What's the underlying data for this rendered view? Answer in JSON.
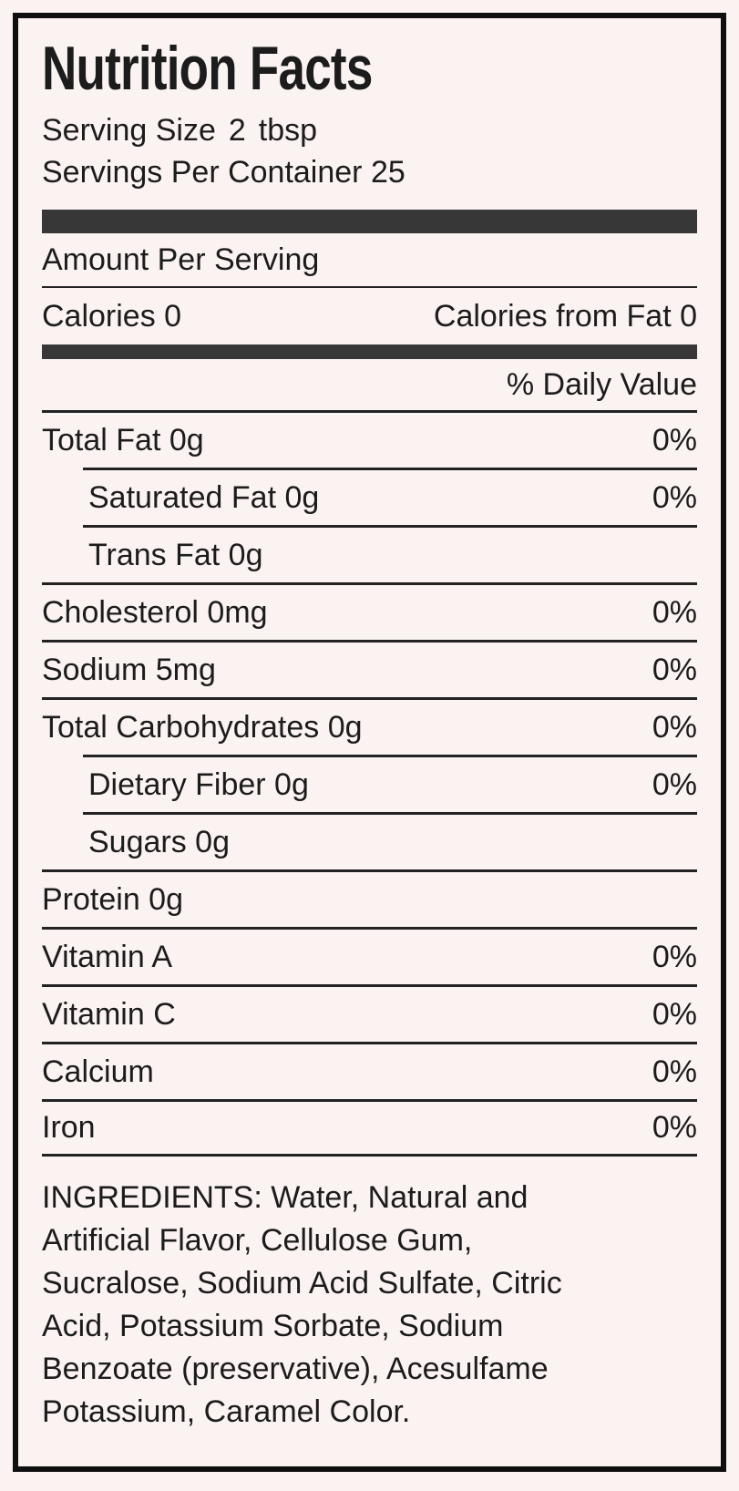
{
  "label": {
    "title": "Nutrition Facts",
    "serving_size": {
      "label": "Serving Size",
      "amount": "2",
      "unit": "tbsp"
    },
    "servings_per_container": "Servings Per Container 25",
    "amount_per_serving": "Amount Per Serving",
    "calories": {
      "left": "Calories 0",
      "right": "Calories from Fat 0"
    },
    "daily_value_header": "% Daily Value",
    "nutrients": [
      {
        "name": "Total Fat 0g",
        "daily_value": "0%"
      },
      {
        "name": "Saturated Fat 0g",
        "daily_value": "0%"
      },
      {
        "name": "Trans Fat 0g",
        "daily_value": ""
      },
      {
        "name": "Cholesterol 0mg",
        "daily_value": "0%"
      },
      {
        "name": "Sodium 5mg",
        "daily_value": "0%"
      },
      {
        "name": "Total Carbohydrates 0g",
        "daily_value": "0%"
      },
      {
        "name": "Dietary Fiber 0g",
        "daily_value": "0%"
      },
      {
        "name": "Sugars 0g",
        "daily_value": ""
      },
      {
        "name": "Protein 0g",
        "daily_value": ""
      },
      {
        "name": "Vitamin A",
        "daily_value": "0%"
      },
      {
        "name": "Vitamin C",
        "daily_value": "0%"
      },
      {
        "name": "Calcium",
        "daily_value": "0%"
      },
      {
        "name": "Iron",
        "daily_value": "0%"
      }
    ],
    "ingredients_lines": [
      "INGREDIENTS: Water, Natural and",
      "Artificial Flavor, Cellulose Gum,",
      "Sucralose, Sodium Acid Sulfate, Citric",
      "Acid, Potassium Sorbate, Sodium",
      "Benzoate (preservative), Acesulfame",
      "Potassium, Caramel Color."
    ],
    "ingredients_full_text": "INGREDIENTS: Water, Natural and Artificial Flavor, Cellulose Gum, Sucralose, Sodium Acid Sulfate, Citric Acid, Potassium Sorbate, Sodium Benzoate (preservative), Acesulfame Potassium, Caramel Color."
  },
  "colors": {
    "background": "#fbf3f2",
    "ink": "#1c1c1c",
    "border": "#0f0f0f",
    "separator_bar": "#373737",
    "divider": "#222222"
  }
}
